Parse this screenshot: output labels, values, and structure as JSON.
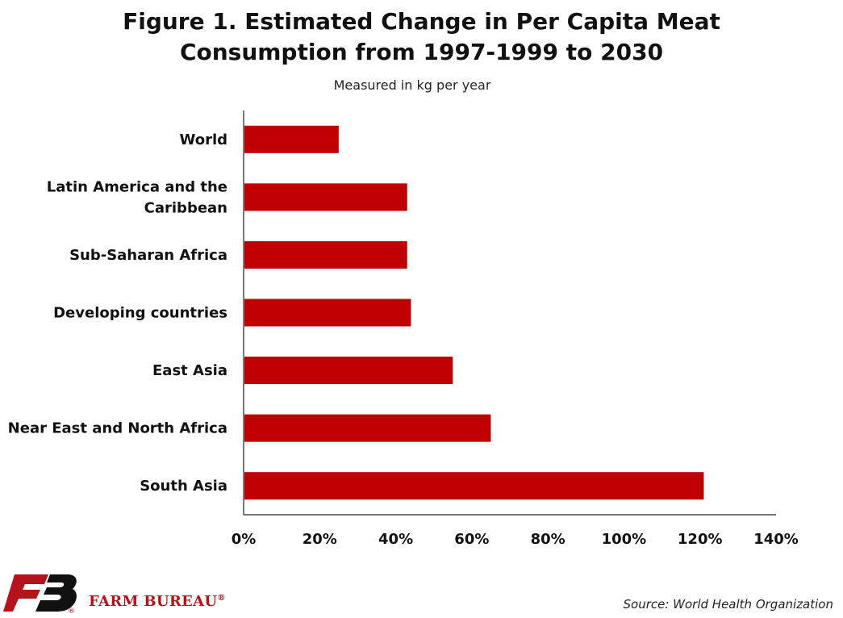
{
  "title_line1": "Figure 1.  Estimated Change in Per Capita Meat",
  "title_line2": "Consumption from 1997-1999 to 2030",
  "subtitle": "Measured in kg per year",
  "source": "Source: World Health Organization",
  "brand": {
    "name": "FARM BUREAU",
    "mark": "®",
    "logo_color": "#b5121b"
  },
  "chart_data": {
    "type": "bar",
    "orientation": "horizontal",
    "categories": [
      [
        "World"
      ],
      [
        "Latin America and the",
        "Caribbean"
      ],
      [
        "Sub-Saharan Africa"
      ],
      [
        "Developing countries"
      ],
      [
        "East Asia"
      ],
      [
        "Near East and North Africa"
      ],
      [
        "South Asia"
      ]
    ],
    "values": [
      25,
      43,
      43,
      44,
      55,
      65,
      121
    ],
    "xlim": [
      0,
      140
    ],
    "xticks": [
      "0%",
      "20%",
      "40%",
      "60%",
      "80%",
      "100%",
      "120%",
      "140%"
    ],
    "bar_color": "#c00000",
    "grid": false
  }
}
